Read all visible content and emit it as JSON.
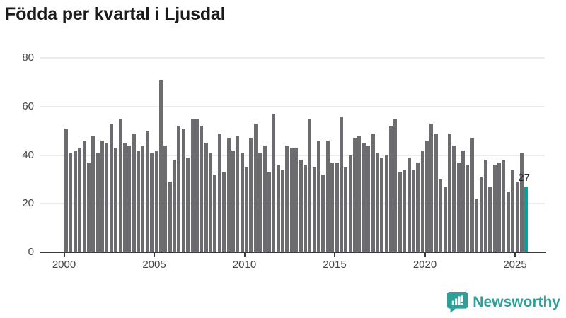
{
  "title": "Födda per kvartal i Ljusdal",
  "branding": {
    "logo_text": "Newsworthy",
    "logo_icon": "bar-chart-speech-bubble"
  },
  "colors": {
    "bar": "#6c6c70",
    "highlight": "#00a39e",
    "axis": "#3a3a3e",
    "gridline": "#ebebeb",
    "title": "#1b1b1d",
    "tick_label": "#45454b",
    "logo": "#2fa099"
  },
  "chart_data": {
    "type": "bar",
    "title": "Födda per kvartal i Ljusdal",
    "start_quarter": "2000-Q1",
    "end_quarter": "2025-Q3",
    "x_tick_labels": [
      "2000",
      "2005",
      "2010",
      "2015",
      "2020",
      "2025"
    ],
    "y_tick_labels": [
      "0",
      "20",
      "40",
      "60",
      "80"
    ],
    "ylim": [
      0,
      80
    ],
    "grid": true,
    "values": [
      51,
      41,
      42,
      43,
      46,
      37,
      48,
      41,
      46,
      45,
      53,
      43,
      55,
      45,
      44,
      49,
      42,
      44,
      50,
      41,
      42,
      71,
      44,
      29,
      38,
      52,
      51,
      39,
      55,
      55,
      52,
      45,
      41,
      32,
      49,
      33,
      47,
      42,
      48,
      41,
      35,
      47,
      53,
      41,
      44,
      33,
      57,
      36,
      34,
      44,
      43,
      43,
      38,
      36,
      55,
      35,
      46,
      32,
      46,
      37,
      37,
      56,
      35,
      40,
      47,
      48,
      45,
      44,
      49,
      41,
      39,
      40,
      52,
      55,
      33,
      34,
      39,
      34,
      37,
      42,
      46,
      53,
      49,
      30,
      27,
      49,
      44,
      37,
      42,
      36,
      47,
      22,
      31,
      38,
      27,
      36,
      37,
      38,
      25,
      34,
      29,
      41,
      27
    ],
    "highlight_last_bar": true,
    "last_value_label": "27"
  }
}
